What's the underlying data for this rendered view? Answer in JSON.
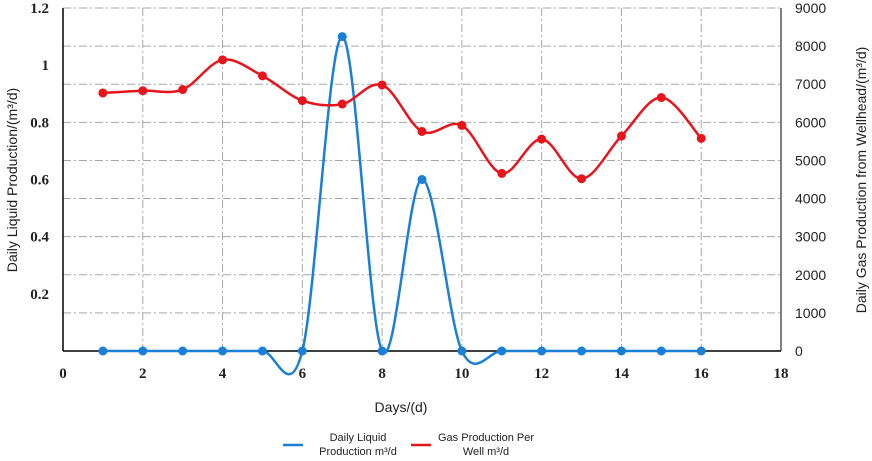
{
  "chart_data": {
    "type": "line",
    "xlabel": "Days/(d)",
    "ylabel_left": "Daily Liquid Production/(m³/d)",
    "ylabel_right": "Daily Gas Production from Wellhead/(m³/d)",
    "xlim": [
      0,
      18
    ],
    "ylim_left": [
      0,
      1.2
    ],
    "ylim_right": [
      0,
      9000
    ],
    "x_ticks": [
      "0",
      "2",
      "4",
      "6",
      "8",
      "10",
      "12",
      "14",
      "16",
      "18"
    ],
    "y_left_ticks": [
      "0.2",
      "0.4",
      "0.6",
      "0.8",
      "1",
      "1.2"
    ],
    "y_right_ticks": [
      "0",
      "1000",
      "2000",
      "3000",
      "4000",
      "5000",
      "6000",
      "7000",
      "8000",
      "9000"
    ],
    "grid": true,
    "legend_position": "bottom",
    "series": [
      {
        "name": "Daily Liquid Production m³/d",
        "name_lines": [
          "Daily Liquid",
          "Production m³/d"
        ],
        "axis": "left",
        "color": "#1a7fd6",
        "x": [
          1,
          2,
          3,
          4,
          5,
          6,
          7,
          8,
          9,
          10,
          11,
          12,
          13,
          14,
          15,
          16
        ],
        "values": [
          0,
          0,
          0,
          0,
          0,
          0,
          1.1,
          0,
          0.6,
          0,
          0,
          0,
          0,
          0,
          0,
          0
        ]
      },
      {
        "name": "Gas Production Per Well m³/d",
        "name_lines": [
          "Gas Production Per",
          "Well m³/d"
        ],
        "axis": "right",
        "color": "#e8141c",
        "x": [
          1,
          2,
          3,
          4,
          5,
          6,
          7,
          8,
          9,
          10,
          11,
          12,
          13,
          14,
          15,
          16
        ],
        "values": [
          6770,
          6830,
          6860,
          7640,
          7220,
          6570,
          6480,
          6980,
          5760,
          5920,
          4660,
          5560,
          4520,
          5640,
          6650,
          5580
        ]
      }
    ]
  }
}
